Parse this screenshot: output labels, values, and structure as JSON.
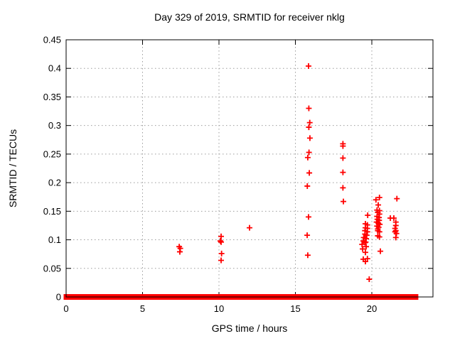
{
  "chart_data": {
    "type": "scatter",
    "title": "Day 329 of 2019, SRMTID for receiver nklg",
    "xlabel": "GPS time / hours",
    "ylabel": "SRMTID / TECUs",
    "xlim": [
      0,
      24
    ],
    "ylim": [
      0,
      0.45
    ],
    "xticks": {
      "values": [
        0,
        5,
        10,
        15,
        20
      ],
      "labels": [
        "0",
        "5",
        "10",
        "15",
        "20"
      ]
    },
    "yticks": {
      "values": [
        0,
        0.05,
        0.1,
        0.15,
        0.2,
        0.25,
        0.3,
        0.35,
        0.4,
        0.45
      ],
      "labels": [
        "0",
        "0.05",
        "0.1",
        "0.15",
        "0.2",
        "0.25",
        "0.3",
        "0.35",
        "0.4",
        "0.45"
      ]
    },
    "grid": "dotted",
    "legend": "none",
    "marker": "plus",
    "series_name": "SRMTID",
    "points": [
      [
        7.4,
        0.088
      ],
      [
        7.47,
        0.085
      ],
      [
        7.44,
        0.079
      ],
      [
        10.14,
        0.106
      ],
      [
        10.09,
        0.098
      ],
      [
        10.14,
        0.096
      ],
      [
        10.17,
        0.076
      ],
      [
        10.14,
        0.064
      ],
      [
        12.0,
        0.121
      ],
      [
        15.86,
        0.404
      ],
      [
        15.88,
        0.33
      ],
      [
        15.94,
        0.305
      ],
      [
        15.88,
        0.297
      ],
      [
        15.95,
        0.278
      ],
      [
        15.89,
        0.253
      ],
      [
        15.81,
        0.244
      ],
      [
        15.91,
        0.217
      ],
      [
        15.78,
        0.194
      ],
      [
        15.86,
        0.14
      ],
      [
        15.77,
        0.108
      ],
      [
        15.81,
        0.073
      ],
      [
        18.11,
        0.268
      ],
      [
        18.11,
        0.264
      ],
      [
        18.11,
        0.243
      ],
      [
        18.11,
        0.218
      ],
      [
        18.11,
        0.191
      ],
      [
        18.14,
        0.167
      ],
      [
        19.73,
        0.143
      ],
      [
        19.58,
        0.128
      ],
      [
        19.71,
        0.126
      ],
      [
        19.58,
        0.121
      ],
      [
        19.71,
        0.12
      ],
      [
        19.55,
        0.116
      ],
      [
        19.71,
        0.114
      ],
      [
        19.55,
        0.11
      ],
      [
        19.67,
        0.108
      ],
      [
        19.47,
        0.104
      ],
      [
        19.63,
        0.102
      ],
      [
        19.44,
        0.098
      ],
      [
        19.6,
        0.096
      ],
      [
        19.55,
        0.095
      ],
      [
        19.36,
        0.092
      ],
      [
        19.63,
        0.088
      ],
      [
        19.4,
        0.084
      ],
      [
        19.58,
        0.078
      ],
      [
        19.71,
        0.067
      ],
      [
        19.44,
        0.066
      ],
      [
        19.58,
        0.062
      ],
      [
        19.83,
        0.031
      ],
      [
        20.27,
        0.17
      ],
      [
        20.5,
        0.174
      ],
      [
        20.42,
        0.161
      ],
      [
        20.34,
        0.152
      ],
      [
        20.5,
        0.151
      ],
      [
        20.39,
        0.148
      ],
      [
        20.5,
        0.145
      ],
      [
        20.34,
        0.141
      ],
      [
        20.47,
        0.139
      ],
      [
        20.36,
        0.136
      ],
      [
        20.48,
        0.134
      ],
      [
        20.31,
        0.131
      ],
      [
        20.43,
        0.129
      ],
      [
        20.52,
        0.127
      ],
      [
        20.34,
        0.124
      ],
      [
        20.45,
        0.122
      ],
      [
        20.39,
        0.119
      ],
      [
        20.39,
        0.116
      ],
      [
        20.5,
        0.114
      ],
      [
        20.39,
        0.107
      ],
      [
        20.5,
        0.105
      ],
      [
        20.56,
        0.08
      ],
      [
        21.64,
        0.172
      ],
      [
        21.21,
        0.138
      ],
      [
        21.44,
        0.138
      ],
      [
        21.57,
        0.131
      ],
      [
        21.57,
        0.125
      ],
      [
        21.52,
        0.12
      ],
      [
        21.57,
        0.116
      ],
      [
        21.52,
        0.114
      ],
      [
        21.61,
        0.111
      ],
      [
        21.57,
        0.104
      ]
    ],
    "zero_band_segments": [
      [
        0.0,
        0.33
      ],
      [
        0.42,
        0.6
      ],
      [
        0.67,
        0.88
      ],
      [
        1.02,
        1.12
      ],
      [
        1.22,
        2.4
      ],
      [
        2.51,
        2.59
      ],
      [
        2.68,
        2.87
      ],
      [
        2.96,
        3.3
      ],
      [
        3.41,
        3.55
      ],
      [
        3.65,
        15.73
      ],
      [
        15.83,
        18.19
      ],
      [
        18.28,
        20.48
      ],
      [
        20.64,
        22.88
      ]
    ]
  },
  "colors": {
    "marker": "#ff0000",
    "grid": "#9c9c9c",
    "axis": "#000000",
    "background": "#ffffff",
    "text": "#000000"
  }
}
